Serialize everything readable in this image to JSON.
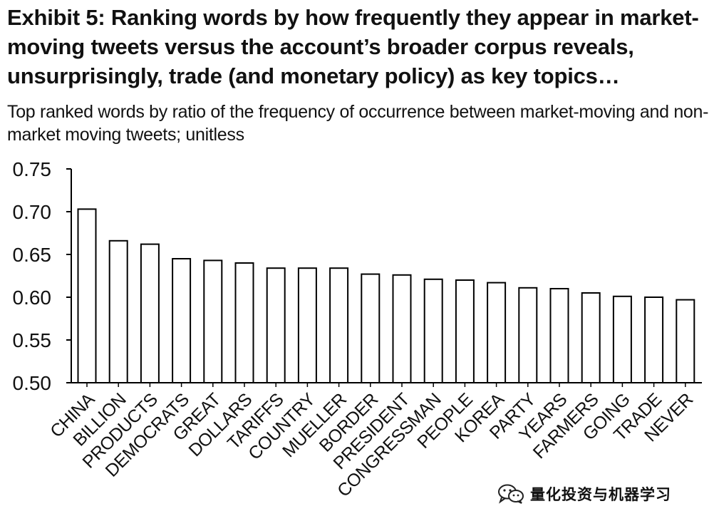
{
  "title": "Exhibit 5: Ranking words by how frequently they appear in market-moving tweets versus the account’s broader corpus reveals, unsurprisingly, trade (and monetary policy) as key topics…",
  "subtitle": "Top ranked words by ratio of the frequency of occurrence between market-moving and non-market moving tweets; unitless",
  "watermark": {
    "text": "量化投资与机器学习",
    "icon": "wechat-icon"
  },
  "chart_data": {
    "type": "bar",
    "categories": [
      "CHINA",
      "BILLION",
      "PRODUCTS",
      "DEMOCRATS",
      "GREAT",
      "DOLLARS",
      "TARIFFS",
      "COUNTRY",
      "MUELLER",
      "BORDER",
      "PRESIDENT",
      "CONGRESSMAN",
      "PEOPLE",
      "KOREA",
      "PARTY",
      "YEARS",
      "FARMERS",
      "GOING",
      "TRADE",
      "NEVER"
    ],
    "values": [
      0.703,
      0.666,
      0.662,
      0.645,
      0.643,
      0.64,
      0.634,
      0.634,
      0.634,
      0.627,
      0.626,
      0.621,
      0.62,
      0.617,
      0.611,
      0.61,
      0.605,
      0.601,
      0.6,
      0.597
    ],
    "ylim": [
      0.5,
      0.75
    ],
    "yticks": [
      "0.75",
      "0.70",
      "0.65",
      "0.60",
      "0.55",
      "0.50"
    ],
    "xlabel": "",
    "ylabel": "",
    "grid": false,
    "legend": "none",
    "bar_fill": "#ffffff",
    "bar_stroke": "#000000"
  }
}
